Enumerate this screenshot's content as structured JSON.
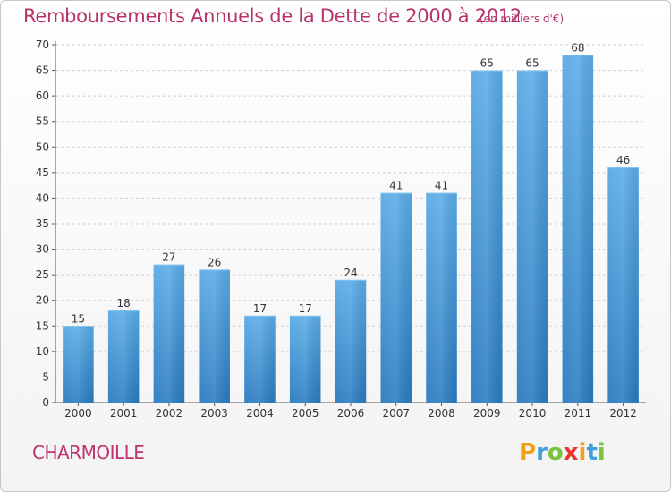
{
  "header": {
    "title": "Remboursements Annuels de la Dette de 2000 à 2012",
    "subtitle": "(en milliers d'€)"
  },
  "footer": {
    "commune": "CHARMOILLE",
    "logo_text": "Proxiti"
  },
  "colors": {
    "title": "#b8326a",
    "bar_top": "#5aabe6",
    "bar_bottom": "#2a7bbf",
    "grid": "#d0d0d0"
  },
  "chart_data": {
    "type": "bar",
    "title": "Remboursements Annuels de la Dette de 2000 à 2012",
    "subtitle": "(en milliers d'€)",
    "xlabel": "",
    "ylabel": "",
    "categories": [
      "2000",
      "2001",
      "2002",
      "2003",
      "2004",
      "2005",
      "2006",
      "2007",
      "2008",
      "2009",
      "2010",
      "2011",
      "2012"
    ],
    "values": [
      15,
      18,
      27,
      26,
      17,
      17,
      24,
      41,
      41,
      65,
      65,
      68,
      46
    ],
    "ylim": [
      0,
      70
    ],
    "yticks": [
      0,
      5,
      10,
      15,
      20,
      25,
      30,
      35,
      40,
      45,
      50,
      55,
      60,
      65,
      70
    ],
    "grid": true,
    "data_labels": true
  }
}
